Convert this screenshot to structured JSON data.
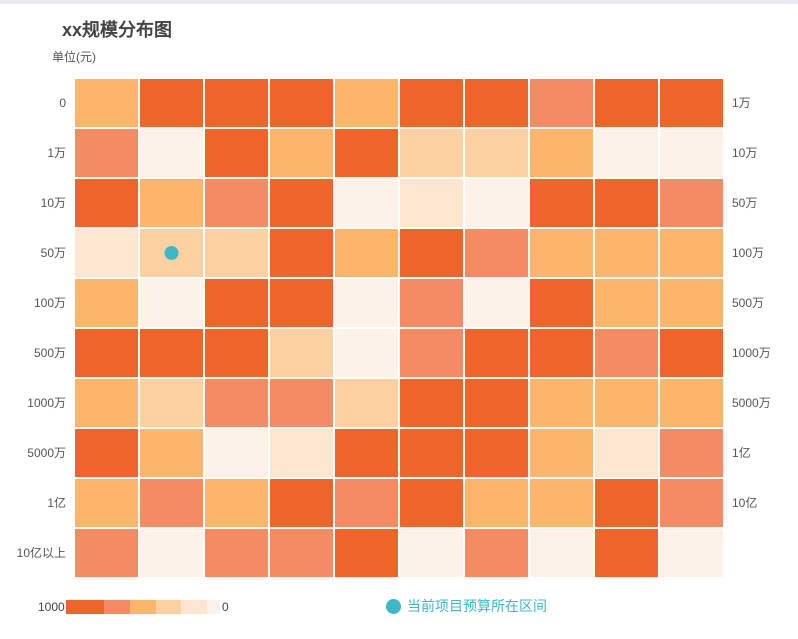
{
  "title": "xx规模分布图",
  "unit_label": "单位(元)",
  "legend": {
    "max_label": "1000",
    "min_label": "0",
    "marker_label": "当前项目预算所在区间",
    "marker_color": "#3bb9c7"
  },
  "chart_data": {
    "type": "heatmap",
    "title": "xx规模分布图",
    "unit": "单位(元)",
    "columns": 10,
    "y_left": [
      "0",
      "1万",
      "10万",
      "50万",
      "100万",
      "500万",
      "1000万",
      "5000万",
      "1亿",
      "10亿以上"
    ],
    "y_right": [
      "1万",
      "10万",
      "50万",
      "100万",
      "500万",
      "1000万",
      "5000万",
      "1亿",
      "10亿",
      ""
    ],
    "level_colors": [
      "#fdf2e9",
      "#fde6cf",
      "#fdd0a2",
      "#fdb56b",
      "#f58b62",
      "#ef6429"
    ],
    "value_max": 1000,
    "value_min": 0,
    "levels": [
      [
        3,
        5,
        5,
        5,
        3,
        5,
        5,
        4,
        5,
        5
      ],
      [
        4,
        0,
        5,
        3,
        5,
        2,
        2,
        3,
        0,
        0
      ],
      [
        5,
        3,
        4,
        5,
        0,
        1,
        0,
        5,
        5,
        4
      ],
      [
        1,
        2,
        2,
        5,
        3,
        5,
        4,
        3,
        3,
        3
      ],
      [
        3,
        0,
        5,
        5,
        0,
        4,
        0,
        5,
        3,
        3
      ],
      [
        5,
        5,
        5,
        2,
        0,
        4,
        5,
        5,
        4,
        5
      ],
      [
        3,
        2,
        4,
        4,
        2,
        5,
        5,
        3,
        3,
        3
      ],
      [
        5,
        3,
        0,
        1,
        5,
        5,
        5,
        3,
        1,
        4
      ],
      [
        3,
        4,
        3,
        5,
        4,
        5,
        3,
        3,
        5,
        4
      ],
      [
        4,
        0,
        4,
        4,
        5,
        0,
        4,
        0,
        5,
        0
      ]
    ],
    "marker": {
      "row": 3,
      "col": 1
    }
  }
}
